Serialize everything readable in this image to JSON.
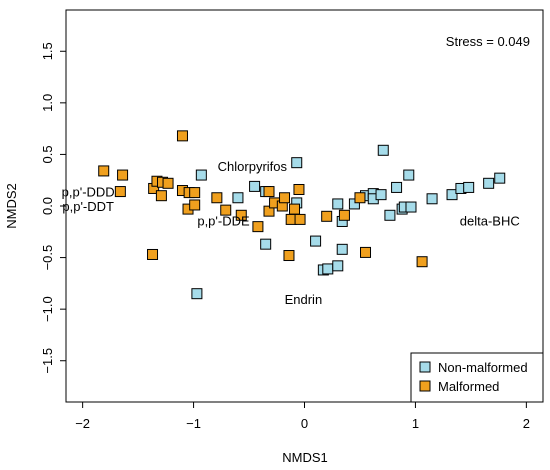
{
  "chart_data": {
    "type": "scatter",
    "xlabel": "NMDS1",
    "ylabel": "NMDS2",
    "xlim": [
      -2.15,
      2.15
    ],
    "ylim": [
      -1.9,
      1.9
    ],
    "xticks": [
      -2,
      -1,
      0,
      1,
      2
    ],
    "yticks": [
      -1.5,
      -1.0,
      -0.5,
      0.0,
      0.5,
      1.0,
      1.5
    ],
    "yticklabels": [
      "−1.5",
      "−1.0",
      "−0.5",
      "0.0",
      "0.5",
      "1.0",
      "1.5"
    ],
    "xticklabels": [
      "−2",
      "−1",
      "0",
      "1",
      "2"
    ],
    "stress_text": "Stress = 0.049",
    "legend_position": "bottom-right",
    "series": [
      {
        "name": "Non-malformed",
        "color": "#a6dcea",
        "points": [
          [
            -0.93,
            0.3
          ],
          [
            -0.6,
            0.08
          ],
          [
            -0.45,
            0.19
          ],
          [
            -0.07,
            0.42
          ],
          [
            -0.35,
            0.14
          ],
          [
            -0.07,
            0.03
          ],
          [
            0.3,
            0.02
          ],
          [
            0.45,
            0.02
          ],
          [
            0.55,
            0.1
          ],
          [
            0.62,
            0.12
          ],
          [
            0.62,
            0.07
          ],
          [
            0.69,
            0.11
          ],
          [
            0.71,
            0.54
          ],
          [
            0.77,
            -0.09
          ],
          [
            0.83,
            0.18
          ],
          [
            0.88,
            -0.03
          ],
          [
            0.9,
            -0.01
          ],
          [
            0.94,
            0.3
          ],
          [
            0.96,
            -0.01
          ],
          [
            1.15,
            0.07
          ],
          [
            1.33,
            0.11
          ],
          [
            1.41,
            0.17
          ],
          [
            1.48,
            0.18
          ],
          [
            1.66,
            0.22
          ],
          [
            1.76,
            0.27
          ],
          [
            0.34,
            -0.15
          ],
          [
            0.1,
            -0.34
          ],
          [
            0.34,
            -0.42
          ],
          [
            -0.35,
            -0.37
          ],
          [
            0.17,
            -0.62
          ],
          [
            0.21,
            -0.61
          ],
          [
            0.3,
            -0.58
          ],
          [
            -0.97,
            -0.85
          ]
        ]
      },
      {
        "name": "Malformed",
        "color": "#f0a01e",
        "points": [
          [
            -1.81,
            0.34
          ],
          [
            -1.64,
            0.3
          ],
          [
            -1.66,
            0.14
          ],
          [
            -1.36,
            0.17
          ],
          [
            -1.33,
            0.24
          ],
          [
            -1.28,
            0.23
          ],
          [
            -1.29,
            0.1
          ],
          [
            -1.23,
            0.22
          ],
          [
            -1.1,
            0.68
          ],
          [
            -1.1,
            0.15
          ],
          [
            -1.04,
            0.13
          ],
          [
            -1.05,
            -0.03
          ],
          [
            -0.99,
            0.13
          ],
          [
            -0.99,
            0.01
          ],
          [
            -0.79,
            0.08
          ],
          [
            -0.71,
            -0.04
          ],
          [
            -0.57,
            -0.09
          ],
          [
            -0.42,
            -0.2
          ],
          [
            -0.32,
            0.14
          ],
          [
            -0.32,
            -0.05
          ],
          [
            -0.27,
            0.03
          ],
          [
            -0.2,
            0.0
          ],
          [
            -0.18,
            0.08
          ],
          [
            -0.12,
            -0.13
          ],
          [
            -0.05,
            0.16
          ],
          [
            -0.04,
            -0.13
          ],
          [
            -0.09,
            -0.03
          ],
          [
            -0.14,
            -0.48
          ],
          [
            0.2,
            -0.1
          ],
          [
            0.36,
            -0.09
          ],
          [
            0.5,
            0.08
          ],
          [
            0.55,
            -0.45
          ],
          [
            1.06,
            -0.54
          ],
          [
            -1.37,
            -0.47
          ]
        ]
      }
    ],
    "annotations": [
      {
        "text": "Chlorpyrifos",
        "x": -0.47,
        "y": 0.39
      },
      {
        "text": "p,p'-DDD",
        "x": -1.95,
        "y": 0.14
      },
      {
        "text": "p,p'-DDT",
        "x": -1.95,
        "y": 0.0
      },
      {
        "text": "p,p'-DDE",
        "x": -0.73,
        "y": -0.14
      },
      {
        "text": "delta-BHC",
        "x": 1.67,
        "y": -0.14
      },
      {
        "text": "Endrin",
        "x": -0.01,
        "y": -0.9
      }
    ]
  }
}
